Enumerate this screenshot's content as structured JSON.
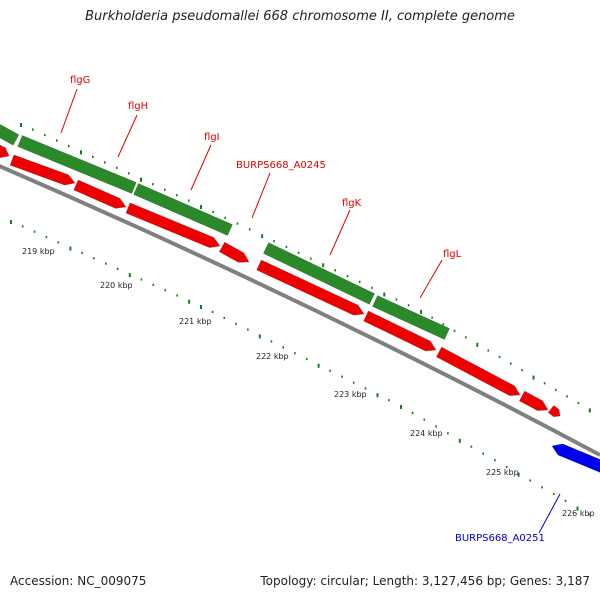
{
  "title": "Burkholderia pseudomallei 668 chromosome II, complete genome",
  "accession": "Accession: NC_009075",
  "summary": "Topology: circular; Length: 3,127,456 bp; Genes: 3,187",
  "genes": [
    {
      "label": "flgG",
      "color": "#dd0000"
    },
    {
      "label": "flgH",
      "color": "#dd0000"
    },
    {
      "label": "flgI",
      "color": "#dd0000"
    },
    {
      "label": "BURPS668_A0245",
      "color": "#dd0000"
    },
    {
      "label": "flgK",
      "color": "#dd0000"
    },
    {
      "label": "flgL",
      "color": "#dd0000"
    },
    {
      "label": "BURPS668_A0251",
      "color": "#0000cc"
    }
  ],
  "ticks": [
    "219 kbp",
    "220 kbp",
    "221 kbp",
    "222 kbp",
    "223 kbp",
    "224 kbp",
    "225 kbp",
    "226 kbp"
  ],
  "colors": {
    "cds_green": "#2a8a2a",
    "cds_red": "#ee0000",
    "cds_blue": "#0000ee",
    "backbone": "#808080",
    "tick": "#1a7a1a"
  }
}
